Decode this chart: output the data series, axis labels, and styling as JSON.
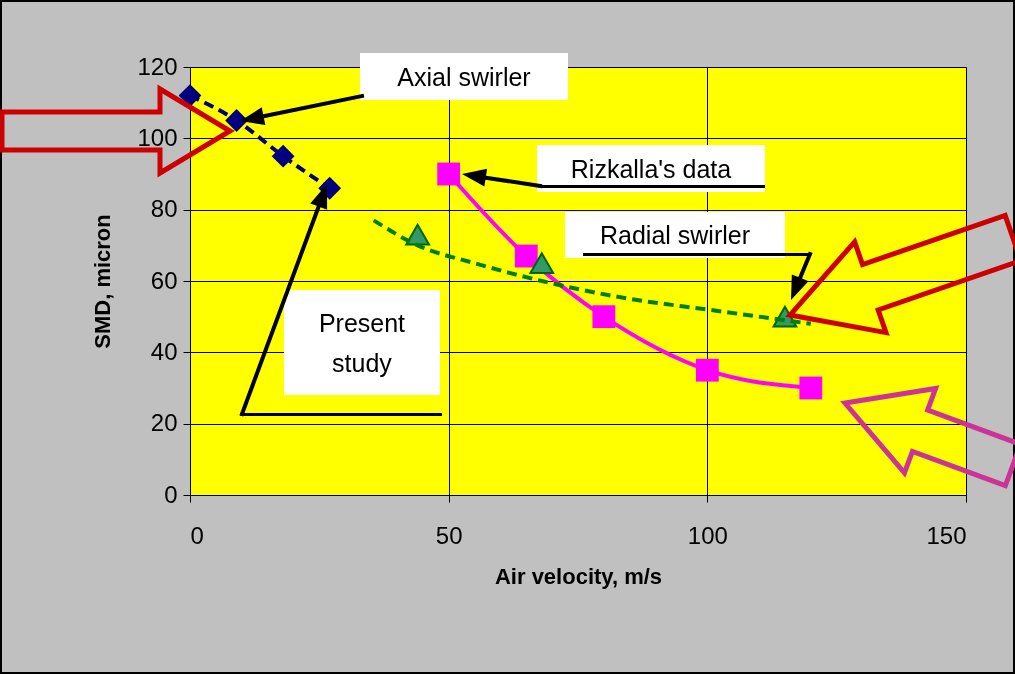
{
  "chart_data": {
    "type": "line",
    "xlabel": "Air velocity, m/s",
    "ylabel": "SMD, micron",
    "xlim": [
      0,
      150
    ],
    "xticks": [
      0,
      50,
      100,
      150
    ],
    "ylim": [
      0,
      120
    ],
    "yticks": [
      0,
      20,
      40,
      60,
      80,
      100,
      120
    ],
    "grid": true,
    "series": [
      {
        "color": "#000080",
        "marker": "diamond",
        "line_style": "dashed",
        "x": [
          0,
          9,
          18,
          27
        ],
        "values": [
          112,
          105,
          95,
          86
        ]
      },
      {
        "color": "#ff00ff",
        "marker": "square",
        "line_style": "solid",
        "x": [
          50,
          65,
          80,
          100,
          120
        ],
        "values": [
          90,
          67,
          50,
          35,
          30
        ]
      },
      {
        "type": "scatter",
        "color": "#339966",
        "marker": "triangle",
        "x": [
          44,
          68,
          115
        ],
        "values": [
          73,
          65,
          50
        ]
      },
      {
        "color": "#008000",
        "marker": "none",
        "line_style": "dashed",
        "x": [
          35.5,
          44,
          55,
          68,
          85,
          100,
          115,
          120
        ],
        "values": [
          77,
          70,
          65,
          60,
          55,
          52,
          49,
          48
        ]
      }
    ],
    "annotations": [
      "Axial swirler",
      "Rizkalla's data",
      "Radial swirler",
      "Present study"
    ]
  }
}
